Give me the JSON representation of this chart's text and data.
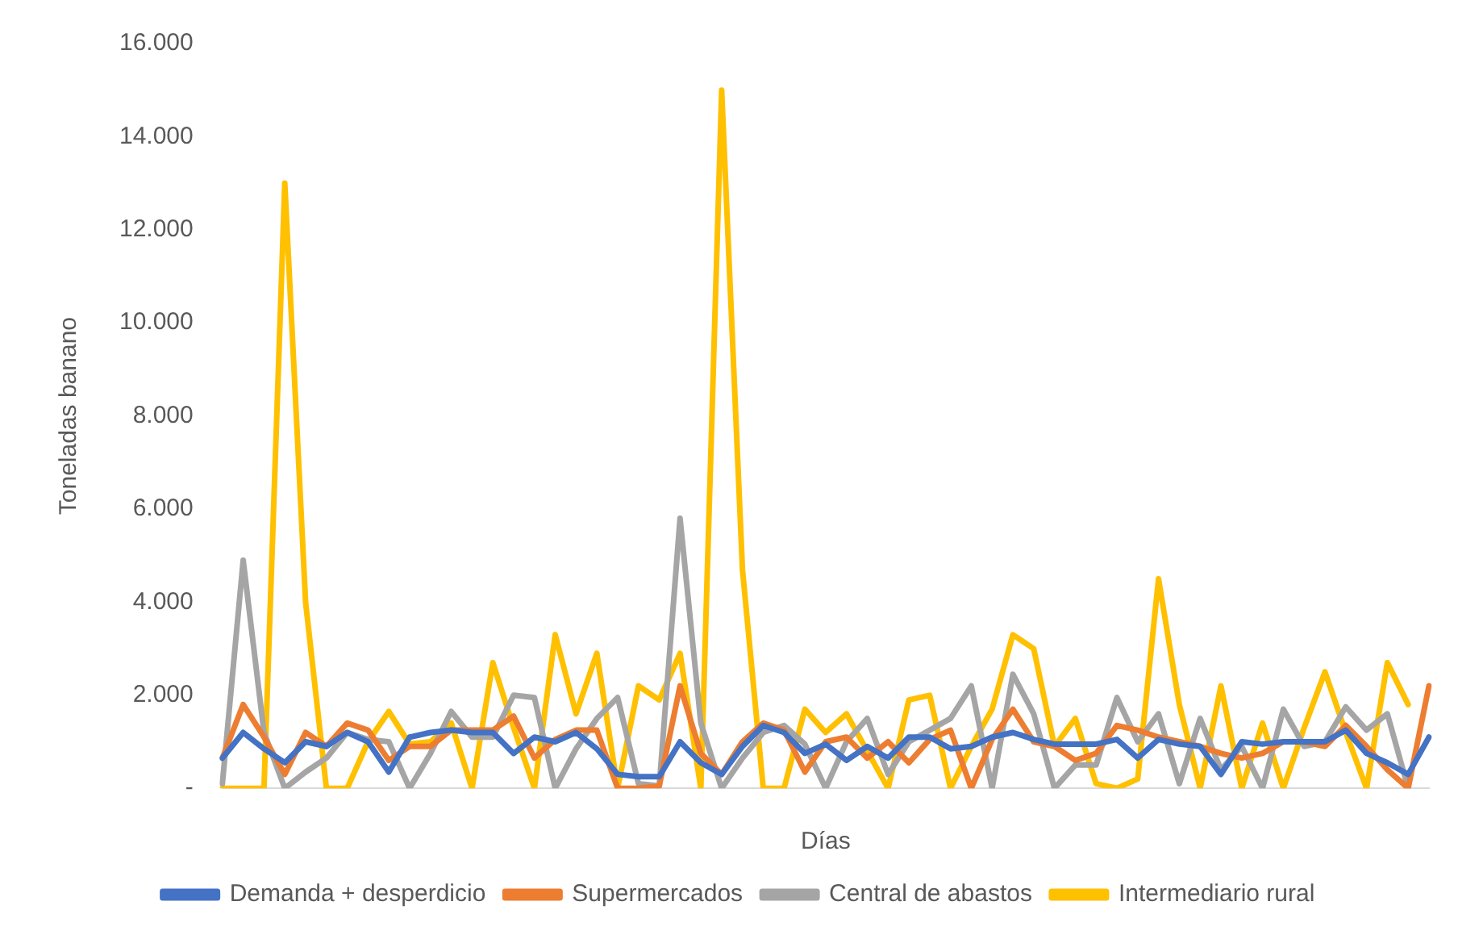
{
  "chart_data": {
    "type": "line",
    "xlabel": "Días",
    "ylabel": "Toneladas banano",
    "categories": [
      null,
      null,
      null,
      null,
      null,
      null,
      null,
      null,
      null,
      null,
      null,
      null,
      null,
      null,
      null,
      null,
      null,
      null,
      null,
      null,
      null,
      null,
      null,
      null,
      null,
      null,
      null,
      null,
      null,
      null,
      null,
      null,
      null,
      null,
      null,
      null,
      null,
      null,
      null,
      null,
      null,
      null,
      null,
      null,
      null,
      null,
      null,
      null,
      null,
      null,
      null,
      null,
      null,
      null,
      null,
      null,
      null,
      null,
      null
    ],
    "series": [
      {
        "name": "Demanda + desperdicio",
        "color": "#4472c4",
        "values": [
          650,
          1200,
          850,
          550,
          1000,
          900,
          1200,
          1000,
          350,
          1100,
          1200,
          1250,
          1200,
          1200,
          750,
          1100,
          1000,
          1200,
          850,
          300,
          250,
          250,
          1000,
          550,
          300,
          900,
          1350,
          1200,
          750,
          950,
          600,
          900,
          650,
          1100,
          1100,
          850,
          900,
          1100,
          1200,
          1050,
          950,
          950,
          950,
          1050,
          650,
          1050,
          950,
          900,
          300,
          1000,
          950,
          1000,
          1000,
          1000,
          1250,
          750,
          550,
          300,
          1100
        ]
      },
      {
        "name": "Supermercados",
        "color": "#ed7d31",
        "values": [
          650,
          1800,
          1100,
          300,
          1200,
          900,
          1400,
          1250,
          600,
          900,
          900,
          1250,
          1250,
          1250,
          1550,
          650,
          1050,
          1250,
          1250,
          0,
          0,
          50,
          2200,
          750,
          300,
          1000,
          1400,
          1250,
          350,
          1000,
          1100,
          650,
          1000,
          550,
          1050,
          1250,
          0,
          1050,
          1700,
          1000,
          900,
          600,
          750,
          1350,
          1250,
          1100,
          1000,
          900,
          750,
          650,
          750,
          1000,
          1000,
          900,
          1350,
          900,
          400,
          0,
          2200
        ]
      },
      {
        "name": "Central de abastos",
        "color": "#a5a5a5",
        "values": [
          100,
          4900,
          1200,
          0,
          350,
          650,
          1200,
          1050,
          1000,
          0,
          750,
          1650,
          1100,
          1100,
          2000,
          1950,
          0,
          850,
          1500,
          1950,
          100,
          50,
          5800,
          1400,
          0,
          650,
          1200,
          1350,
          950,
          0,
          1000,
          1500,
          300,
          1000,
          1250,
          1500,
          2200,
          0,
          2450,
          1600,
          0,
          500,
          500,
          1950,
          1000,
          1600,
          100,
          1500,
          400,
          900,
          0,
          1700,
          900,
          1000,
          1750,
          1250,
          1600,
          0,
          null
        ]
      },
      {
        "name": "Intermediario rural",
        "color": "#ffc000",
        "values": [
          0,
          0,
          0,
          13000,
          4000,
          0,
          0,
          1000,
          1650,
          950,
          1000,
          1400,
          0,
          2700,
          1300,
          0,
          3300,
          1600,
          2900,
          0,
          2200,
          1900,
          2900,
          0,
          15000,
          4700,
          0,
          0,
          1700,
          1200,
          1600,
          800,
          0,
          1900,
          2000,
          0,
          900,
          1700,
          3300,
          3000,
          900,
          1500,
          100,
          0,
          200,
          4500,
          1800,
          0,
          2200,
          0,
          1400,
          0,
          1300,
          2500,
          1200,
          0,
          2700,
          1800,
          null
        ]
      }
    ],
    "ylim": [
      0,
      16000
    ],
    "yticks": [
      {
        "value": 0,
        "label": "-"
      },
      {
        "value": 2000,
        "label": "2.000"
      },
      {
        "value": 4000,
        "label": "4.000"
      },
      {
        "value": 6000,
        "label": "6.000"
      },
      {
        "value": 8000,
        "label": "8.000"
      },
      {
        "value": 10000,
        "label": "10.000"
      },
      {
        "value": 12000,
        "label": "12.000"
      },
      {
        "value": 14000,
        "label": "14.000"
      },
      {
        "value": 16000,
        "label": "16.000"
      }
    ],
    "grid": false,
    "legend": "bottom",
    "marker": "none",
    "line_style": "solid"
  }
}
